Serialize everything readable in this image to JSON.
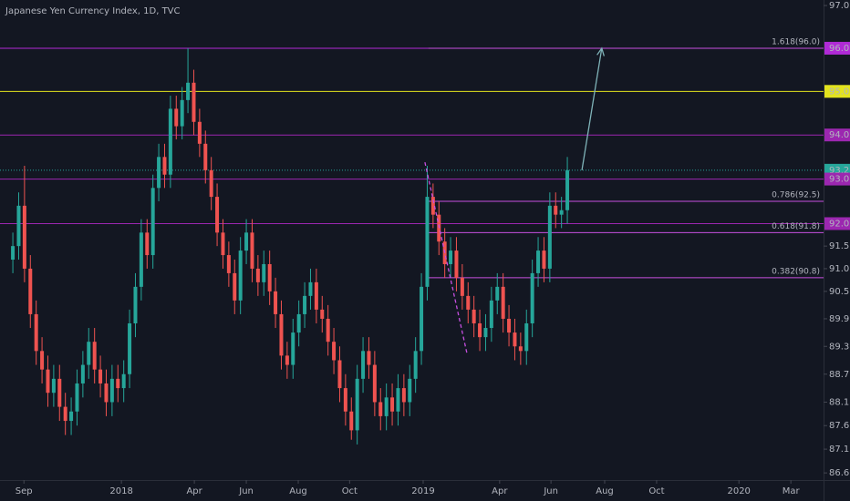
{
  "chart_data": {
    "type": "candlestick",
    "title": "Japanese Yen Currency Index, 1D, TVC",
    "log_scale": true,
    "grid": false,
    "up_color": "#26a69a",
    "down_color": "#ef5350",
    "open": [
      91.2,
      91.5,
      92.4,
      91.0,
      90.0,
      89.2,
      88.8,
      88.3,
      88.6,
      88.0,
      87.7,
      87.9,
      88.5,
      88.9,
      89.4,
      88.8,
      88.5,
      88.1,
      88.6,
      88.4,
      88.7,
      89.8,
      90.6,
      91.8,
      91.3,
      92.8,
      93.5,
      93.1,
      94.6,
      94.2,
      94.8,
      95.2,
      94.3,
      93.8,
      93.2,
      92.6,
      91.8,
      91.3,
      90.9,
      90.3,
      91.4,
      91.8,
      91.0,
      90.7,
      91.1,
      90.5,
      90.0,
      89.1,
      88.9,
      89.6,
      90.0,
      90.4,
      90.7,
      90.1,
      89.9,
      89.4,
      89.0,
      88.4,
      87.9,
      87.5,
      88.6,
      89.2,
      88.9,
      88.1,
      87.8,
      88.2,
      87.9,
      88.4,
      88.1,
      88.6,
      89.2,
      90.6,
      92.6,
      92.2,
      91.6,
      91.1,
      91.4,
      90.8,
      90.4,
      90.1,
      89.8,
      89.5,
      89.7,
      90.3,
      90.6,
      89.9,
      89.6,
      89.3,
      89.2,
      89.8,
      90.9,
      91.4,
      91.0,
      92.4,
      92.2,
      92.3
    ],
    "high": [
      91.8,
      92.7,
      93.3,
      91.3,
      90.3,
      89.5,
      89.1,
      88.9,
      88.9,
      88.3,
      88.2,
      88.8,
      89.2,
      89.7,
      89.7,
      89.1,
      88.8,
      88.9,
      88.9,
      89.0,
      90.1,
      90.9,
      92.1,
      92.1,
      93.1,
      93.8,
      93.8,
      94.9,
      94.9,
      95.1,
      96.0,
      95.5,
      94.6,
      94.1,
      93.5,
      92.9,
      92.1,
      91.6,
      91.2,
      91.7,
      92.1,
      92.1,
      91.3,
      91.4,
      91.4,
      90.8,
      90.3,
      89.4,
      89.9,
      90.3,
      90.7,
      91.0,
      91.0,
      90.4,
      90.2,
      89.7,
      89.3,
      88.7,
      88.2,
      88.9,
      89.5,
      89.5,
      89.2,
      88.4,
      88.5,
      88.5,
      88.7,
      88.7,
      88.9,
      89.5,
      90.9,
      93.3,
      92.9,
      92.5,
      91.9,
      91.7,
      91.7,
      91.1,
      90.7,
      90.4,
      90.1,
      90.0,
      90.6,
      90.9,
      90.9,
      90.2,
      89.9,
      89.6,
      90.1,
      91.2,
      91.7,
      91.7,
      92.7,
      92.7,
      92.6,
      93.5
    ],
    "low": [
      90.9,
      91.2,
      90.7,
      89.7,
      88.9,
      88.5,
      88.0,
      88.0,
      87.7,
      87.4,
      87.4,
      87.6,
      88.2,
      88.6,
      88.5,
      88.2,
      87.8,
      87.8,
      88.1,
      88.1,
      88.4,
      89.5,
      90.3,
      91.0,
      91.0,
      92.5,
      92.8,
      92.8,
      93.9,
      93.9,
      94.5,
      94.0,
      93.5,
      92.9,
      92.3,
      91.5,
      91.0,
      90.6,
      90.0,
      90.0,
      91.1,
      90.7,
      90.4,
      90.4,
      90.2,
      89.7,
      88.8,
      88.6,
      88.6,
      89.3,
      89.7,
      90.1,
      89.8,
      89.6,
      89.1,
      88.7,
      88.1,
      87.6,
      87.3,
      87.2,
      88.3,
      88.6,
      87.8,
      87.5,
      87.5,
      87.6,
      87.6,
      87.8,
      87.8,
      88.3,
      88.9,
      90.3,
      91.9,
      91.3,
      90.8,
      90.8,
      90.5,
      90.1,
      89.8,
      89.5,
      89.2,
      89.2,
      89.4,
      90.0,
      89.6,
      89.3,
      89.0,
      88.9,
      88.9,
      89.5,
      90.6,
      90.7,
      90.7,
      91.9,
      91.9,
      92.0
    ],
    "close": [
      91.5,
      92.4,
      91.0,
      90.0,
      89.2,
      88.8,
      88.3,
      88.6,
      88.0,
      87.7,
      87.9,
      88.5,
      88.9,
      89.4,
      88.8,
      88.5,
      88.1,
      88.6,
      88.4,
      88.7,
      89.8,
      90.6,
      91.8,
      91.3,
      92.8,
      93.5,
      93.1,
      94.6,
      94.2,
      94.8,
      95.2,
      94.3,
      93.8,
      93.2,
      92.6,
      91.8,
      91.3,
      90.9,
      90.3,
      91.4,
      91.8,
      91.0,
      90.7,
      91.1,
      90.5,
      90.0,
      89.1,
      88.9,
      89.6,
      90.0,
      90.4,
      90.7,
      90.1,
      89.9,
      89.4,
      89.0,
      88.4,
      87.9,
      87.5,
      88.6,
      89.2,
      88.9,
      88.1,
      87.8,
      88.2,
      87.9,
      88.4,
      88.1,
      88.6,
      89.2,
      90.6,
      92.6,
      92.2,
      91.6,
      91.1,
      91.4,
      90.8,
      90.4,
      90.1,
      89.8,
      89.5,
      89.7,
      90.3,
      90.6,
      89.9,
      89.6,
      89.3,
      89.2,
      89.8,
      90.9,
      91.4,
      91.0,
      92.4,
      92.2,
      92.3,
      93.2
    ],
    "xlim": [
      -2.2,
      138.9
    ],
    "xticks": [
      {
        "value": 1.9,
        "label": "Sep"
      },
      {
        "value": 18.6,
        "label": "2018"
      },
      {
        "value": 31.1,
        "label": "Apr"
      },
      {
        "value": 40,
        "label": "Jun"
      },
      {
        "value": 48.9,
        "label": "Aug"
      },
      {
        "value": 57.7,
        "label": "Oct"
      },
      {
        "value": 70.3,
        "label": "2019"
      },
      {
        "value": 83.4,
        "label": "Apr"
      },
      {
        "value": 92.2,
        "label": "Jun"
      },
      {
        "value": 101.4,
        "label": "Aug"
      },
      {
        "value": 110.3,
        "label": "Oct"
      },
      {
        "value": 124.4,
        "label": "2020"
      },
      {
        "value": 133.3,
        "label": "Mar"
      }
    ],
    "ylim": [
      86.45,
      97.13
    ],
    "yticks": [
      {
        "value": 97,
        "label": "97.0"
      },
      91.5,
      {
        "value": 91,
        "label": "91.0"
      },
      90.5,
      89.9,
      89.3,
      88.7,
      88.1,
      87.6,
      87.1,
      86.6
    ],
    "levels": [
      {
        "value": 96,
        "label": "96.0",
        "color": "#b02ad6"
      },
      {
        "value": 95,
        "label": "95.0",
        "color": "#e3e31e"
      },
      {
        "value": 94,
        "label": "94.0",
        "color": "#9c27b0"
      },
      {
        "value": 93.2,
        "label": "93.2",
        "color": "#26a69a",
        "style": "dotted"
      },
      {
        "value": 93,
        "label": "93.0",
        "color": "#9c27b0"
      },
      {
        "value": 92,
        "label": "92.0",
        "color": "#9c27b0"
      }
    ],
    "fib": {
      "start": 71.2,
      "color": "#c74fe0",
      "levels": [
        {
          "value": 96,
          "label": "1.618(96.0)"
        },
        {
          "value": 92.5,
          "label": "0.786(92.5)"
        },
        {
          "value": 91.8,
          "label": "0.618(91.8)"
        },
        {
          "value": 90.8,
          "label": "0.382(90.8)"
        }
      ]
    },
    "trend_line": {
      "x": [
        70.6,
        77.8
      ],
      "y": [
        93.38,
        89.15
      ],
      "color": "#c74fe0"
    },
    "arrow": {
      "x": [
        97.5,
        100.9
      ],
      "y": [
        93.2,
        96.0
      ],
      "color": "#7fb3b8"
    }
  }
}
